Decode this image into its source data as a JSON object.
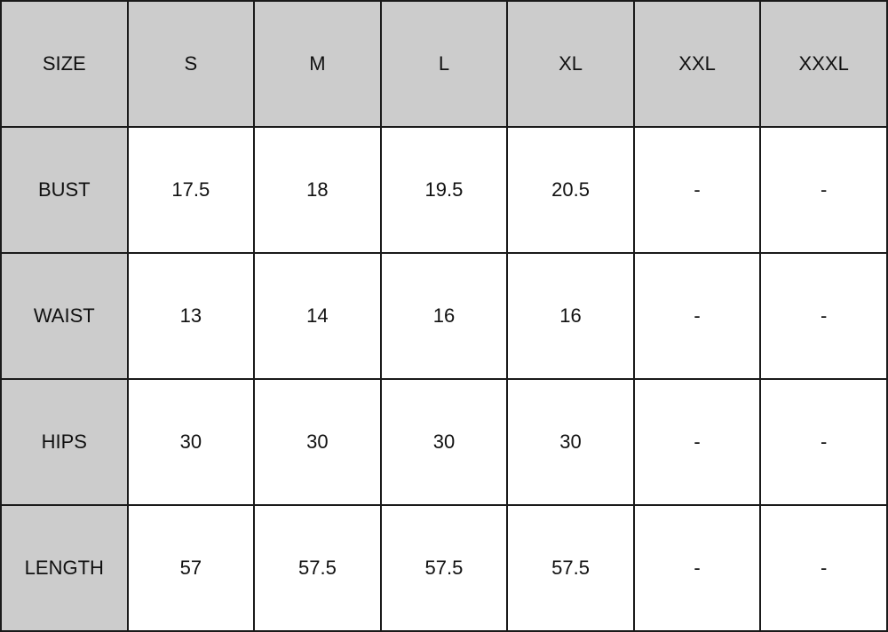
{
  "colors": {
    "header_fill": "#cccccc",
    "border": "#1a1a1a",
    "cell_fill": "#ffffff"
  },
  "table": {
    "corner": "SIZE",
    "columns": [
      "S",
      "M",
      "L",
      "XL",
      "XXL",
      "XXXL"
    ],
    "rows": [
      {
        "label": "BUST",
        "values": [
          "17.5",
          "18",
          "19.5",
          "20.5",
          "-",
          "-"
        ]
      },
      {
        "label": "WAIST",
        "values": [
          "13",
          "14",
          "16",
          "16",
          "-",
          "-"
        ]
      },
      {
        "label": "HIPS",
        "values": [
          "30",
          "30",
          "30",
          "30",
          "-",
          "-"
        ]
      },
      {
        "label": "LENGTH",
        "values": [
          "57",
          "57.5",
          "57.5",
          "57.5",
          "-",
          "-"
        ]
      }
    ]
  }
}
